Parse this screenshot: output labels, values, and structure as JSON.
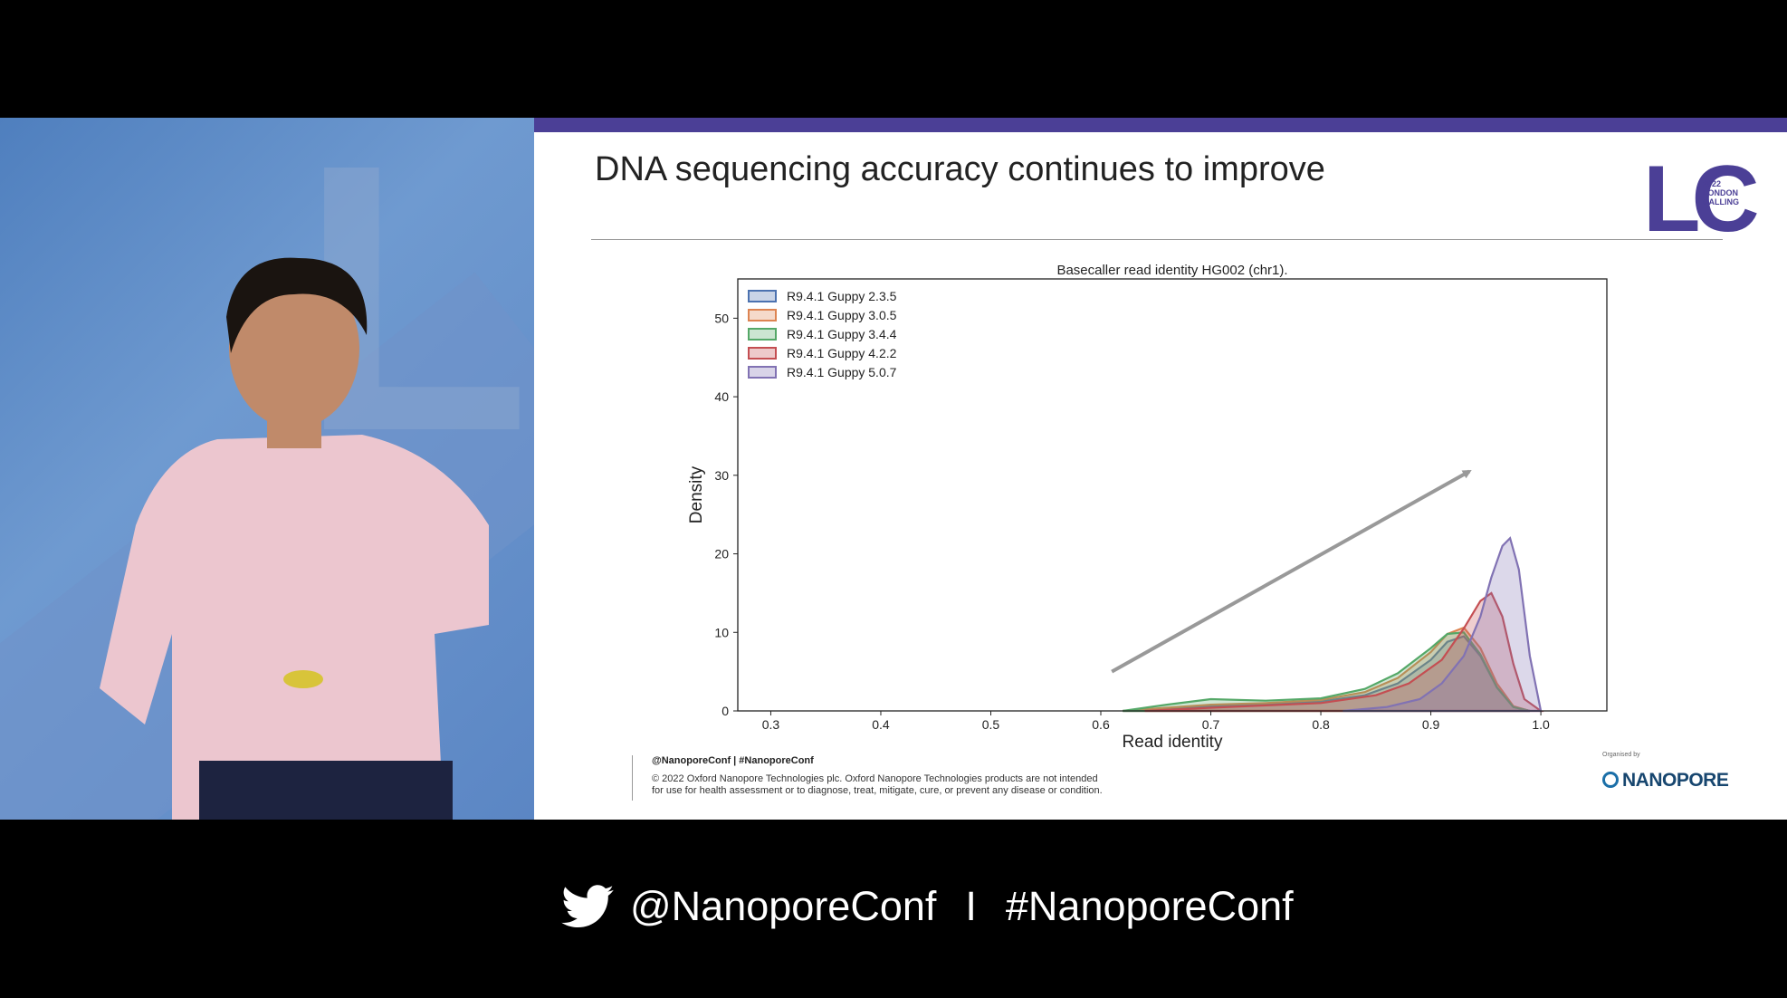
{
  "slide": {
    "title": "DNA sequencing accuracy continues to improve",
    "logo": {
      "letters": "LC",
      "year": "2022",
      "line1": "LONDON",
      "line2": "CALLING",
      "color": "#4b3f96"
    },
    "footer": {
      "handle": "@NanoporeConf | #NanoporeConf",
      "legal_line1": "© 2022 Oxford Nanopore Technologies plc. Oxford Nanopore Technologies products are not intended",
      "legal_line2": "for use for health assessment or to diagnose, treat, mitigate, cure, or prevent any disease or condition."
    },
    "organizer": {
      "by": "Organised by",
      "name": "NANOPORE"
    }
  },
  "banner": {
    "icon": "twitter-bird-icon",
    "handle": "@NanoporeConf",
    "separator": "I",
    "hashtag": "#NanoporeConf"
  },
  "chart_data": {
    "type": "area",
    "title": "Basecaller read identity HG002 (chr1).",
    "xlabel": "Read identity",
    "ylabel": "Density",
    "xlim": [
      0.27,
      1.06
    ],
    "ylim": [
      0,
      55
    ],
    "xticks": [
      "0.3",
      "0.4",
      "0.5",
      "0.6",
      "0.7",
      "0.8",
      "0.9",
      "1.0"
    ],
    "yticks": [
      "0",
      "10",
      "20",
      "30",
      "40",
      "50"
    ],
    "legend_position": "top-left",
    "grid": false,
    "series": [
      {
        "name": "R9.4.1 Guppy 2.3.5",
        "color": "#4c72b0",
        "x": [
          0.62,
          0.66,
          0.7,
          0.75,
          0.8,
          0.84,
          0.87,
          0.9,
          0.915,
          0.93,
          0.945,
          0.96,
          0.975,
          0.99
        ],
        "y": [
          0,
          0.3,
          0.6,
          0.8,
          1.2,
          2.0,
          3.5,
          6.5,
          8.8,
          9.5,
          7.0,
          3.0,
          0.5,
          0
        ]
      },
      {
        "name": "R9.4.1 Guppy 3.0.5",
        "color": "#dd8452",
        "x": [
          0.62,
          0.66,
          0.7,
          0.75,
          0.8,
          0.84,
          0.87,
          0.9,
          0.915,
          0.93,
          0.945,
          0.96,
          0.975,
          0.99
        ],
        "y": [
          0,
          0.4,
          0.8,
          1.0,
          1.4,
          2.4,
          4.2,
          7.5,
          9.8,
          10.6,
          8.0,
          3.5,
          0.6,
          0
        ]
      },
      {
        "name": "R9.4.1 Guppy 3.4.4",
        "color": "#55a868",
        "x": [
          0.62,
          0.66,
          0.7,
          0.75,
          0.8,
          0.84,
          0.87,
          0.9,
          0.915,
          0.93,
          0.945,
          0.96,
          0.975,
          0.99
        ],
        "y": [
          0,
          0.8,
          1.5,
          1.3,
          1.6,
          2.8,
          4.8,
          8.0,
          9.8,
          10.0,
          7.2,
          3.0,
          0.5,
          0
        ]
      },
      {
        "name": "R9.4.1 Guppy 4.2.2",
        "color": "#c44e52",
        "x": [
          0.64,
          0.7,
          0.75,
          0.8,
          0.85,
          0.88,
          0.91,
          0.93,
          0.945,
          0.955,
          0.965,
          0.975,
          0.985,
          1.0
        ],
        "y": [
          0,
          0.4,
          0.7,
          1.0,
          2.0,
          3.5,
          6.5,
          10.5,
          14.0,
          15.0,
          12.0,
          6.0,
          1.5,
          0
        ]
      },
      {
        "name": "R9.4.1 Guppy 5.0.7",
        "color": "#8172b3",
        "x": [
          0.82,
          0.86,
          0.89,
          0.91,
          0.93,
          0.945,
          0.955,
          0.965,
          0.972,
          0.98,
          0.99,
          1.0
        ],
        "y": [
          0,
          0.5,
          1.5,
          3.5,
          7.0,
          12.0,
          17.0,
          21.0,
          22.0,
          18.0,
          7.0,
          0
        ]
      }
    ],
    "annotation": {
      "type": "arrow",
      "from": [
        0.61,
        5.0
      ],
      "to": [
        0.935,
        30.5
      ],
      "color": "#999999"
    }
  }
}
